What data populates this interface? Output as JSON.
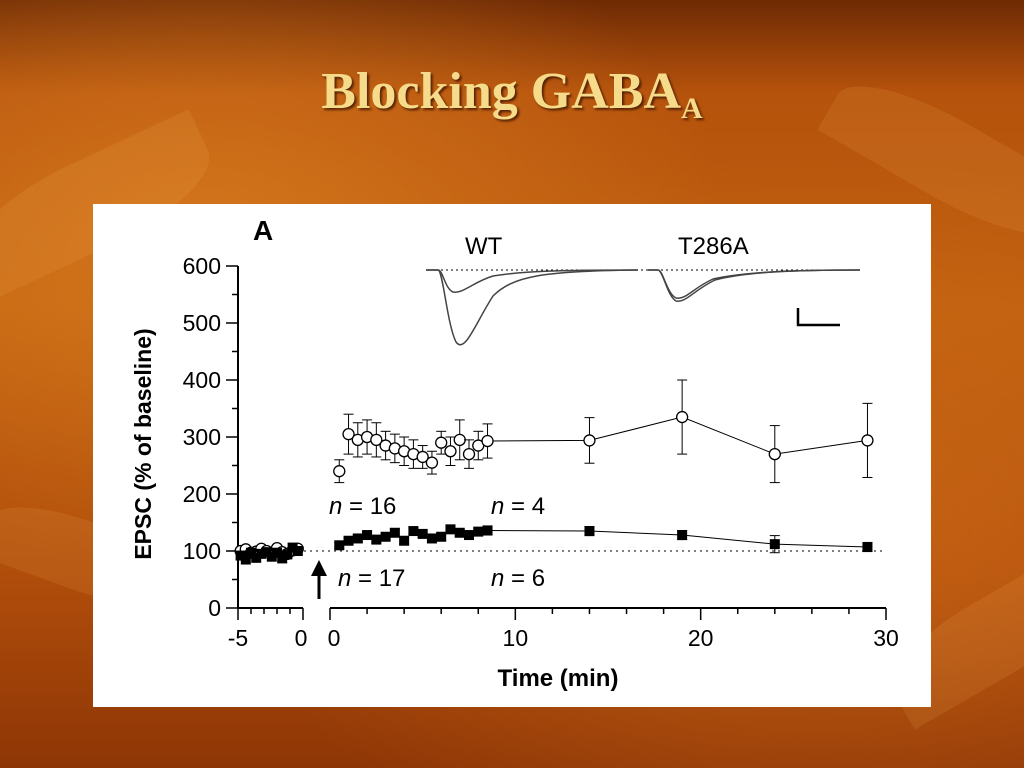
{
  "slide": {
    "title_main": "Blocking GABA",
    "title_sub": "A"
  },
  "colors": {
    "accent": "#f6dc8a",
    "background": "#b5520c"
  },
  "chart_data": {
    "type": "scatter",
    "panel_label": "A",
    "xlabel": "Time (min)",
    "ylabel": "EPSC (% of baseline)",
    "xlim": [
      -5,
      30
    ],
    "ylim": [
      0,
      600
    ],
    "x_ticks": [
      "-5",
      "0",
      "0",
      "10",
      "20",
      "30"
    ],
    "y_ticks": [
      "0",
      "100",
      "200",
      "300",
      "400",
      "500",
      "600"
    ],
    "baseline": 100,
    "series": [
      {
        "name": "WT",
        "marker": "open-circle",
        "baseline_x": [
          -4.8,
          -4.4,
          -4.0,
          -3.6,
          -3.2,
          -2.8,
          -2.4,
          -2.0,
          -1.6,
          -1.2,
          -0.8,
          -0.4
        ],
        "baseline_y": [
          100,
          103,
          97,
          99,
          104,
          100,
          96,
          105,
          98,
          95,
          101,
          104
        ],
        "x": [
          0.5,
          1.0,
          1.5,
          2.0,
          2.5,
          3.0,
          3.5,
          4.0,
          4.5,
          5.0,
          5.5,
          6.0,
          6.5,
          7.0,
          7.5,
          8.0,
          8.5,
          14,
          19,
          24,
          29
        ],
        "y": [
          240,
          305,
          295,
          300,
          295,
          285,
          280,
          275,
          270,
          265,
          255,
          290,
          275,
          295,
          270,
          285,
          293,
          294,
          335,
          270,
          294
        ],
        "error": [
          20,
          35,
          30,
          30,
          30,
          25,
          25,
          25,
          25,
          20,
          20,
          20,
          25,
          35,
          25,
          25,
          30,
          40,
          65,
          50,
          65
        ]
      },
      {
        "name": "T286A",
        "marker": "filled-square",
        "baseline_x": [
          -4.8,
          -4.4,
          -4.0,
          -3.6,
          -3.2,
          -2.8,
          -2.4,
          -2.0,
          -1.6,
          -1.2,
          -0.8,
          -0.4
        ],
        "baseline_y": [
          92,
          85,
          97,
          88,
          95,
          98,
          90,
          97,
          87,
          94,
          106,
          100
        ],
        "x": [
          0.5,
          1.0,
          1.5,
          2.0,
          2.5,
          3.0,
          3.5,
          4.0,
          4.5,
          5.0,
          5.5,
          6.0,
          6.5,
          7.0,
          7.5,
          8.0,
          8.5,
          14,
          19,
          24,
          29
        ],
        "y": [
          110,
          118,
          122,
          128,
          120,
          125,
          132,
          118,
          135,
          130,
          122,
          125,
          138,
          132,
          128,
          134,
          136,
          135,
          128,
          112,
          107
        ],
        "error": [
          5,
          5,
          6,
          6,
          6,
          6,
          6,
          6,
          6,
          6,
          6,
          6,
          6,
          6,
          6,
          6,
          8,
          8,
          8,
          15,
          8
        ]
      }
    ],
    "annotations": {
      "n_wt_early_prefix": "n",
      "n_wt_early": " = 16",
      "n_wt_late_prefix": "n",
      "n_wt_late": " = 4",
      "n_t286a_early_prefix": "n",
      "n_t286a_early": " = 17",
      "n_t286a_late_prefix": "n",
      "n_t286a_late": " = 6"
    },
    "inset": {
      "labels": [
        "WT",
        "T286A"
      ]
    }
  }
}
